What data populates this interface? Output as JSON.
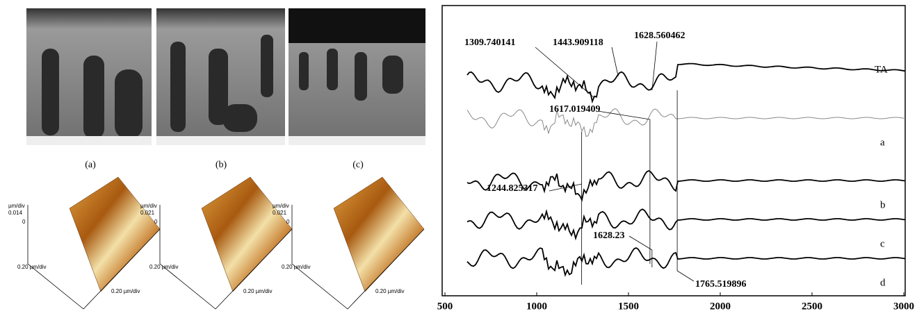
{
  "panels": [
    {
      "label": "(a)",
      "afm_scale": "0.014"
    },
    {
      "label": "(b)",
      "afm_scale": "0.021"
    },
    {
      "label": "(c)",
      "afm_scale": "0.021"
    }
  ],
  "afm_axes": {
    "z_unit": "µm/div",
    "z_zero": "0",
    "lateral": "0.20 µm/div"
  },
  "spectrum": {
    "xlim": [
      500,
      3000
    ],
    "xticks": [
      500,
      1000,
      1500,
      2000,
      2500,
      3000
    ],
    "curve_labels": [
      "TA",
      "a",
      "b",
      "c",
      "d"
    ],
    "peaks": [
      1309.740141,
      1443.909118,
      1628.560462,
      1617.019409,
      1244.825317,
      1628.23,
      1765.519896
    ]
  }
}
